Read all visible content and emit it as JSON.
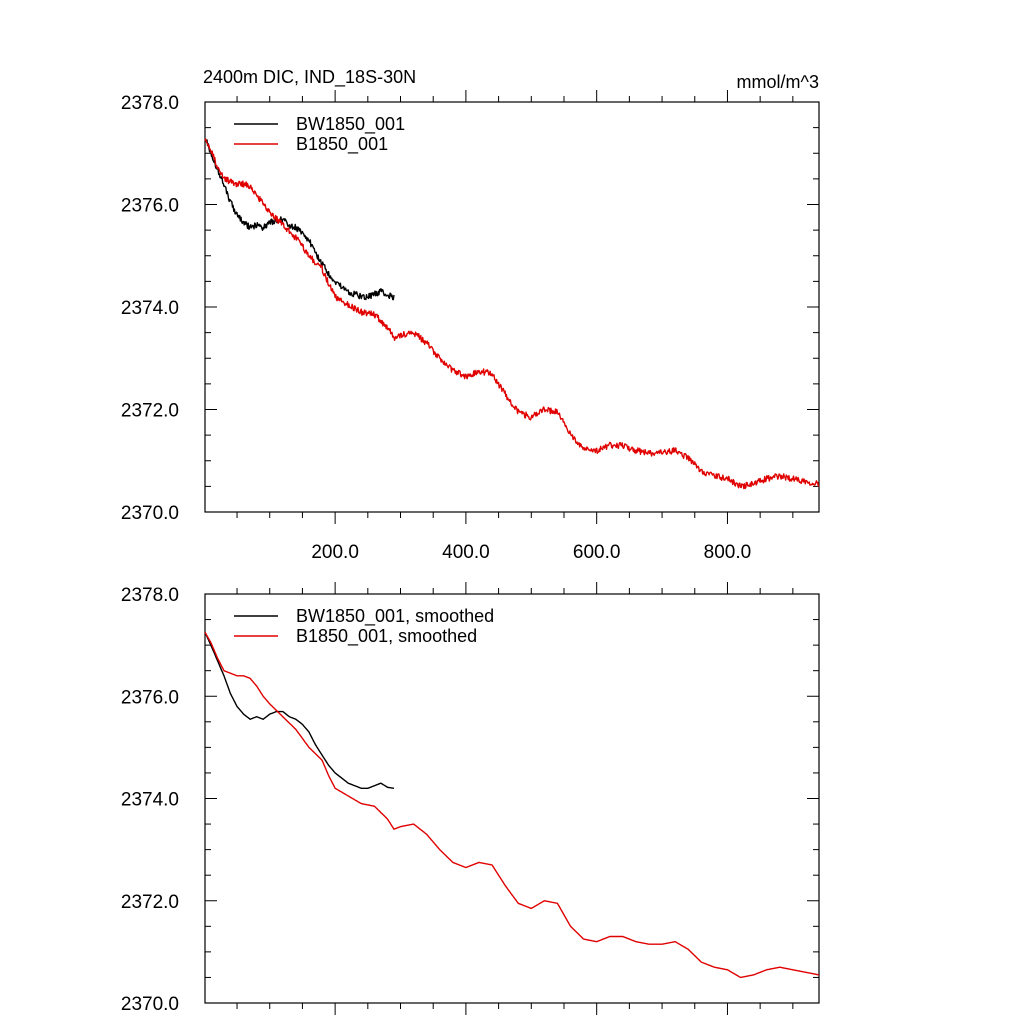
{
  "colors": {
    "series_a": "#000000",
    "series_b": "#e00000",
    "axis": "#000000",
    "background": "#ffffff"
  },
  "chart_data": [
    {
      "type": "line",
      "title_left": "2400m DIC, IND_18S-30N",
      "title_right": "mmol/m^3",
      "xlabel": "",
      "ylabel": "",
      "xlim": [
        1,
        940
      ],
      "ylim": [
        2370.0,
        2378.0
      ],
      "x_ticks": [
        200.0,
        400.0,
        600.0,
        800.0
      ],
      "x_tick_labels": [
        "200.0",
        "400.0",
        "600.0",
        "800.0"
      ],
      "y_ticks": [
        2370.0,
        2372.0,
        2374.0,
        2376.0,
        2378.0
      ],
      "y_tick_labels": [
        "2370.0",
        "2372.0",
        "2374.0",
        "2376.0",
        "2378.0"
      ],
      "legend_position": "top-left",
      "series": [
        {
          "name": "BW1850_001",
          "color": "#000000",
          "noise": 0.06,
          "x": [
            1,
            10,
            20,
            30,
            40,
            50,
            60,
            70,
            80,
            90,
            100,
            110,
            120,
            130,
            140,
            150,
            160,
            170,
            180,
            190,
            200,
            210,
            220,
            230,
            240,
            250,
            260,
            270,
            280,
            290
          ],
          "y": [
            2377.3,
            2377.0,
            2376.7,
            2376.4,
            2376.05,
            2375.8,
            2375.65,
            2375.55,
            2375.6,
            2375.55,
            2375.65,
            2375.7,
            2375.7,
            2375.6,
            2375.55,
            2375.45,
            2375.3,
            2375.05,
            2374.85,
            2374.65,
            2374.5,
            2374.4,
            2374.3,
            2374.25,
            2374.2,
            2374.2,
            2374.25,
            2374.3,
            2374.22,
            2374.2
          ]
        },
        {
          "name": "B1850_001",
          "color": "#e00000",
          "noise": 0.06,
          "x": [
            1,
            10,
            20,
            30,
            40,
            50,
            60,
            70,
            80,
            90,
            100,
            120,
            140,
            160,
            180,
            190,
            200,
            220,
            240,
            260,
            280,
            290,
            300,
            320,
            340,
            360,
            380,
            400,
            420,
            440,
            460,
            480,
            500,
            520,
            540,
            560,
            580,
            600,
            620,
            640,
            660,
            680,
            700,
            720,
            740,
            760,
            780,
            800,
            820,
            840,
            860,
            880,
            900,
            920,
            940
          ],
          "y": [
            2377.3,
            2377.05,
            2376.75,
            2376.5,
            2376.45,
            2376.4,
            2376.4,
            2376.35,
            2376.2,
            2376.0,
            2375.85,
            2375.6,
            2375.35,
            2375.0,
            2374.75,
            2374.45,
            2374.2,
            2374.05,
            2373.9,
            2373.85,
            2373.6,
            2373.4,
            2373.45,
            2373.5,
            2373.3,
            2373.0,
            2372.75,
            2372.65,
            2372.75,
            2372.7,
            2372.3,
            2371.95,
            2371.85,
            2372.0,
            2371.95,
            2371.5,
            2371.25,
            2371.2,
            2371.3,
            2371.3,
            2371.2,
            2371.15,
            2371.15,
            2371.2,
            2371.05,
            2370.8,
            2370.7,
            2370.65,
            2370.5,
            2370.55,
            2370.65,
            2370.7,
            2370.65,
            2370.6,
            2370.55
          ]
        }
      ]
    },
    {
      "type": "line",
      "title_left": "",
      "title_right": "",
      "xlabel": "",
      "ylabel": "",
      "xlim": [
        1,
        940
      ],
      "ylim": [
        2370.0,
        2378.0
      ],
      "x_ticks": [
        200.0,
        400.0,
        600.0,
        800.0
      ],
      "x_tick_labels": [],
      "y_ticks": [
        2370.0,
        2372.0,
        2374.0,
        2376.0,
        2378.0
      ],
      "y_tick_labels": [
        "2370.0",
        "2372.0",
        "2374.0",
        "2376.0",
        "2378.0"
      ],
      "legend_position": "top-left",
      "series": [
        {
          "name": "BW1850_001, smoothed",
          "color": "#000000",
          "noise": 0,
          "x": [
            1,
            10,
            20,
            30,
            40,
            50,
            60,
            70,
            80,
            90,
            100,
            110,
            120,
            130,
            140,
            150,
            160,
            170,
            180,
            190,
            200,
            210,
            220,
            230,
            240,
            250,
            260,
            270,
            280,
            290
          ],
          "y": [
            2377.25,
            2377.0,
            2376.7,
            2376.4,
            2376.05,
            2375.8,
            2375.65,
            2375.55,
            2375.6,
            2375.55,
            2375.65,
            2375.7,
            2375.7,
            2375.6,
            2375.55,
            2375.45,
            2375.3,
            2375.05,
            2374.85,
            2374.65,
            2374.5,
            2374.4,
            2374.3,
            2374.25,
            2374.2,
            2374.2,
            2374.25,
            2374.3,
            2374.22,
            2374.2
          ]
        },
        {
          "name": "B1850_001, smoothed",
          "color": "#e00000",
          "noise": 0,
          "x": [
            1,
            10,
            20,
            30,
            40,
            50,
            60,
            70,
            80,
            90,
            100,
            120,
            140,
            160,
            180,
            190,
            200,
            220,
            240,
            260,
            280,
            290,
            300,
            320,
            340,
            360,
            380,
            400,
            420,
            440,
            460,
            480,
            500,
            520,
            540,
            560,
            580,
            600,
            620,
            640,
            660,
            680,
            700,
            720,
            740,
            760,
            780,
            800,
            820,
            840,
            860,
            880,
            900,
            920,
            940
          ],
          "y": [
            2377.25,
            2377.05,
            2376.75,
            2376.5,
            2376.45,
            2376.4,
            2376.4,
            2376.35,
            2376.2,
            2376.0,
            2375.85,
            2375.6,
            2375.35,
            2375.0,
            2374.75,
            2374.45,
            2374.2,
            2374.05,
            2373.9,
            2373.85,
            2373.6,
            2373.4,
            2373.45,
            2373.5,
            2373.3,
            2373.0,
            2372.75,
            2372.65,
            2372.75,
            2372.7,
            2372.3,
            2371.95,
            2371.85,
            2372.0,
            2371.95,
            2371.5,
            2371.25,
            2371.2,
            2371.3,
            2371.3,
            2371.2,
            2371.15,
            2371.15,
            2371.2,
            2371.05,
            2370.8,
            2370.7,
            2370.65,
            2370.5,
            2370.55,
            2370.65,
            2370.7,
            2370.65,
            2370.6,
            2370.55
          ]
        }
      ]
    }
  ]
}
